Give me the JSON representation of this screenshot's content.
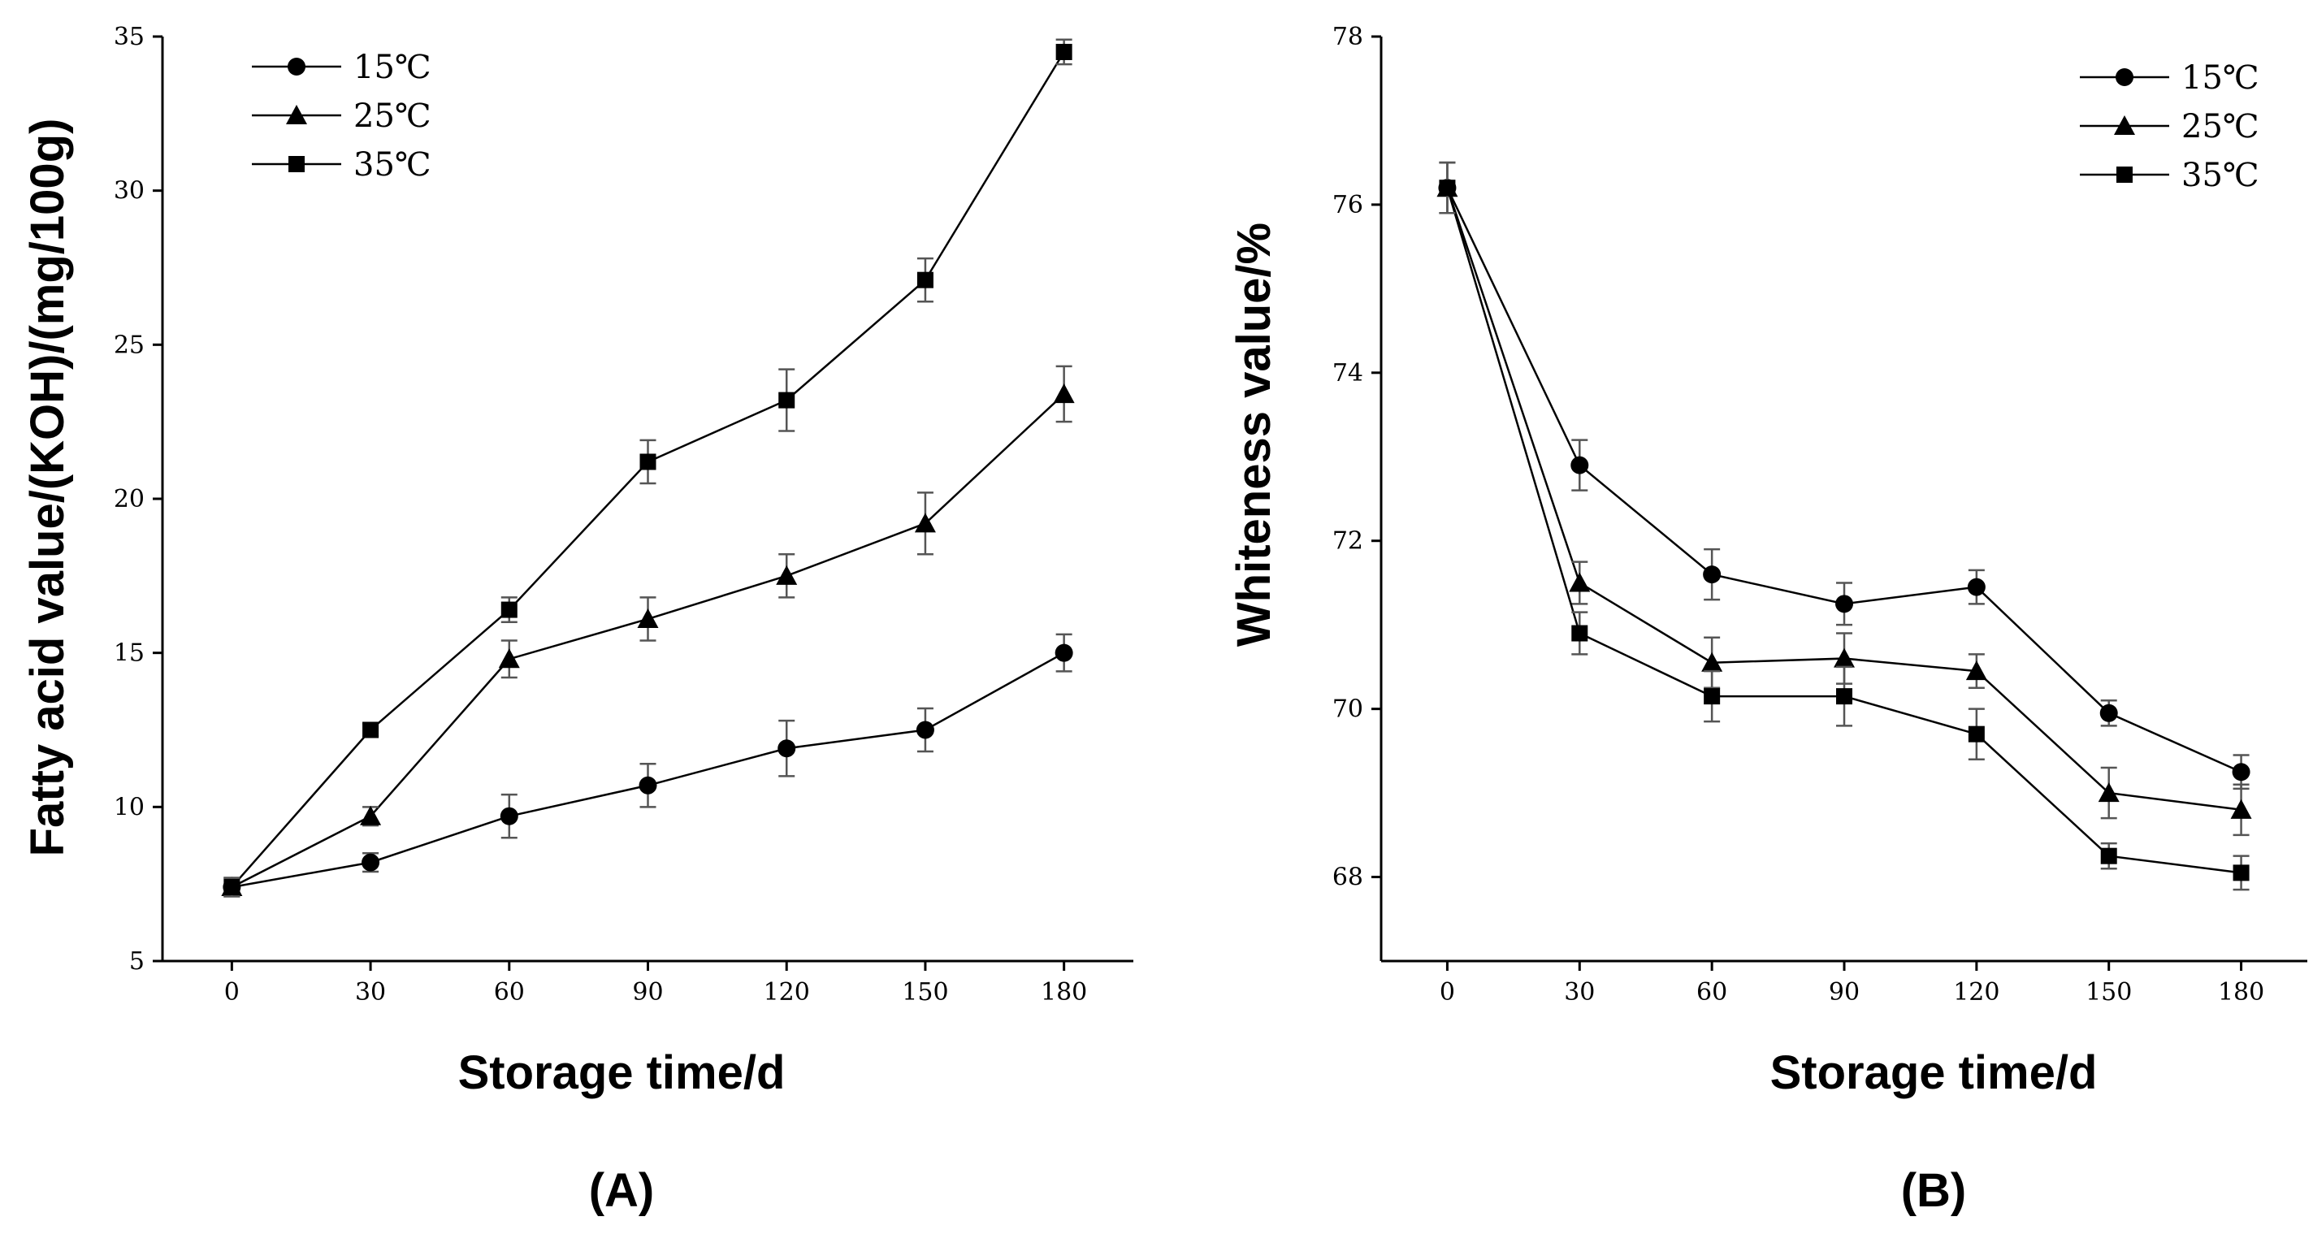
{
  "chart_data": [
    {
      "type": "line",
      "panel_label": "(A)",
      "xlabel": "Storage time/d",
      "ylabel": "Fatty acid value/(KOH)/(mg/100g)",
      "x": [
        0,
        30,
        60,
        90,
        120,
        150,
        180
      ],
      "x_tick_labels": [
        "0",
        "30",
        "60",
        "90",
        "120",
        "150",
        "180"
      ],
      "xlim": [
        -15,
        195
      ],
      "ylim": [
        5,
        35
      ],
      "y_ticks": [
        5,
        10,
        15,
        20,
        25,
        30,
        35
      ],
      "y_tick_labels": [
        "5",
        "10",
        "15",
        "20",
        "25",
        "30",
        "35"
      ],
      "grid": false,
      "legend_position": "top-left",
      "series": [
        {
          "name": "15℃",
          "marker": "circle",
          "values": [
            7.4,
            8.2,
            9.7,
            10.7,
            11.9,
            12.5,
            15.0
          ],
          "errors": [
            0.3,
            0.3,
            0.7,
            0.7,
            0.9,
            0.7,
            0.6
          ]
        },
        {
          "name": "25℃",
          "marker": "triangle",
          "values": [
            7.4,
            9.7,
            14.8,
            16.1,
            17.5,
            19.2,
            23.4
          ],
          "errors": [
            0.3,
            0.3,
            0.6,
            0.7,
            0.7,
            1.0,
            0.9
          ]
        },
        {
          "name": "35℃",
          "marker": "square",
          "values": [
            7.4,
            12.5,
            16.4,
            21.2,
            23.2,
            27.1,
            34.5
          ],
          "errors": [
            0.3,
            0.2,
            0.4,
            0.7,
            1.0,
            0.7,
            0.4
          ]
        }
      ]
    },
    {
      "type": "line",
      "panel_label": "(B)",
      "xlabel": "Storage time/d",
      "ylabel": "Whiteness value/%",
      "x": [
        0,
        30,
        60,
        90,
        120,
        150,
        180
      ],
      "x_tick_labels": [
        "0",
        "30",
        "60",
        "90",
        "120",
        "150",
        "180"
      ],
      "xlim": [
        -15,
        195
      ],
      "ylim": [
        67,
        78
      ],
      "y_ticks": [
        68,
        70,
        72,
        74,
        76,
        78
      ],
      "y_tick_labels": [
        "68",
        "70",
        "72",
        "74",
        "76",
        "78"
      ],
      "grid": false,
      "legend_position": "top-right",
      "series": [
        {
          "name": "15℃",
          "marker": "circle",
          "values": [
            76.2,
            72.9,
            71.6,
            71.25,
            71.45,
            69.95,
            69.25
          ],
          "errors": [
            0.3,
            0.3,
            0.3,
            0.25,
            0.2,
            0.15,
            0.2
          ]
        },
        {
          "name": "25℃",
          "marker": "triangle",
          "values": [
            76.2,
            71.5,
            70.55,
            70.6,
            70.45,
            69.0,
            68.8
          ],
          "errors": [
            0.3,
            0.25,
            0.3,
            0.3,
            0.2,
            0.3,
            0.3
          ]
        },
        {
          "name": "35℃",
          "marker": "square",
          "values": [
            76.2,
            70.9,
            70.15,
            70.15,
            69.7,
            68.25,
            68.05
          ],
          "errors": [
            0.3,
            0.25,
            0.3,
            0.35,
            0.3,
            0.15,
            0.2
          ]
        }
      ]
    }
  ]
}
